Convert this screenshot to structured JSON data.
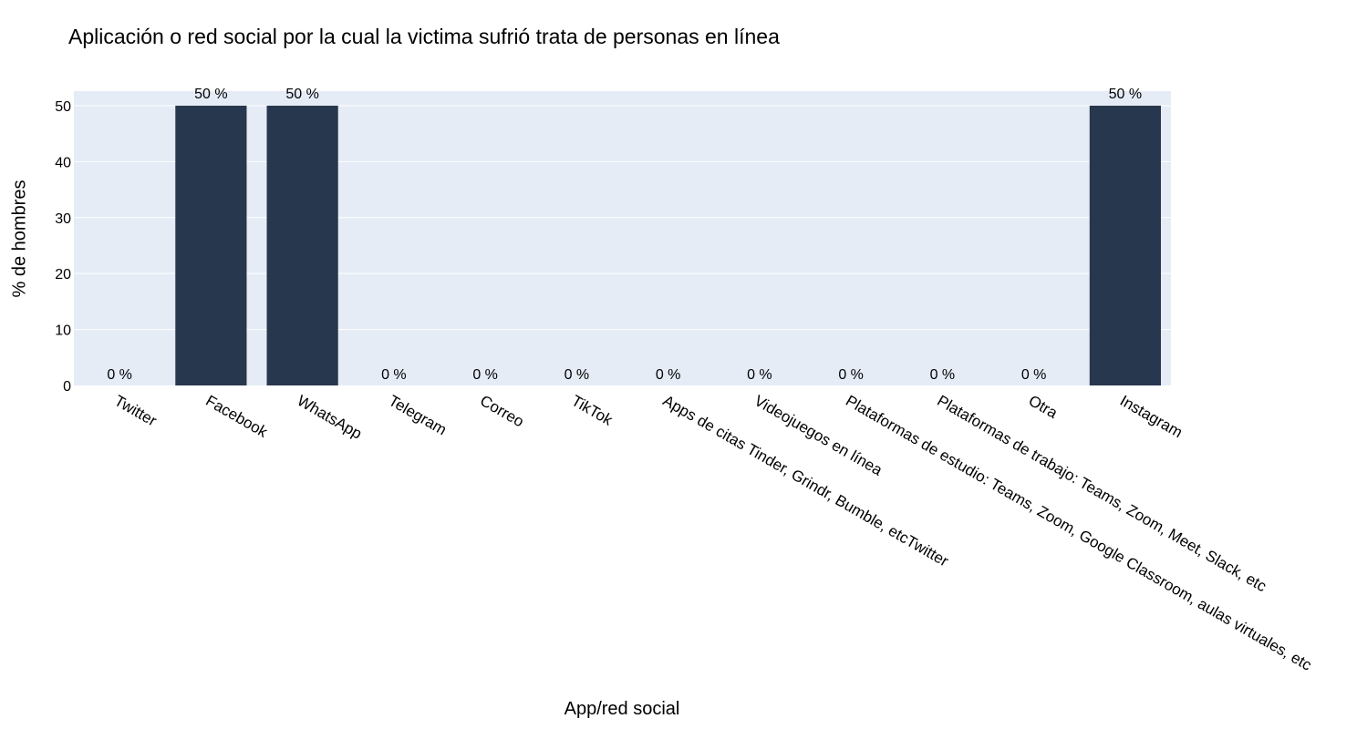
{
  "chart_data": {
    "type": "bar",
    "title": "Aplicación o red social por la cual la victima sufrió trata de personas en línea",
    "xlabel": "App/red social",
    "ylabel": "% de hombres",
    "categories": [
      "Twitter",
      "Facebook",
      "WhatsApp",
      "Telegram",
      "Correo",
      "TikTok",
      "Apps de citas Tinder, Grindr, Bumble, etcTwitter",
      "Videojuegos en línea",
      "Plataformas de estudio: Teams, Zoom, Google Classroom, aulas virtuales, etc",
      "Plataformas de trabajo: Teams, Zoom, Meet, Slack, etc",
      "Otra",
      "Instagram"
    ],
    "values": [
      0,
      50,
      50,
      0,
      0,
      0,
      0,
      0,
      0,
      0,
      0,
      50
    ],
    "data_labels": [
      "0 %",
      "50 %",
      "50 %",
      "0 %",
      "0 %",
      "0 %",
      "0 %",
      "0 %",
      "0 %",
      "0 %",
      "0 %",
      "50 %"
    ],
    "ylim": [
      0,
      52.6
    ],
    "yticks": [
      0,
      10,
      20,
      30,
      40,
      50
    ],
    "grid": true,
    "colors": {
      "bar": "#27374d",
      "plot_bg": "#e5ecf6",
      "grid": "#ffffff"
    }
  }
}
